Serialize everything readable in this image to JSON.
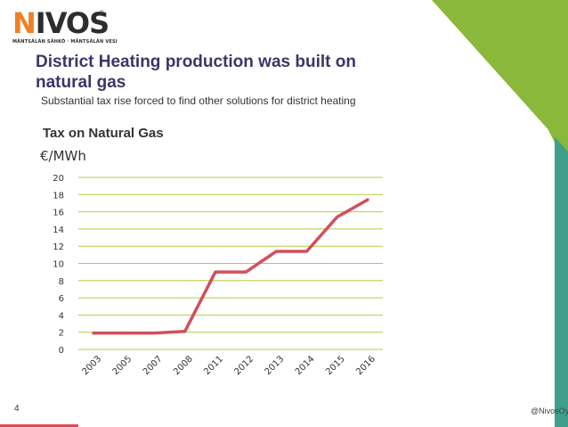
{
  "logo": {
    "brand": "NIVOS",
    "tagline": "MÄNTSÄLÄN SÄHKÖ · MÄNTSÄLÄN VESI",
    "registered": "®"
  },
  "slide": {
    "title": "District Heating production was built on natural gas",
    "subtitle": "Substantial tax rise forced to find other solutions for district heating",
    "page_number": "4",
    "handle": "@NivosOy"
  },
  "colors": {
    "title": "#3d3568",
    "line": "#d0505a",
    "grid": "#b7c944",
    "accent_green": "#8ab83a",
    "accent_teal": "#3f9f8b",
    "logo_orange": "#f07e26"
  },
  "chart_data": {
    "type": "line",
    "title": "Tax on Natural Gas",
    "ylabel": "€/MWh",
    "xlabel": "",
    "categories": [
      "2003",
      "2005",
      "2007",
      "2008",
      "2011",
      "2012",
      "2013",
      "2014",
      "2015",
      "2016"
    ],
    "series": [
      {
        "values": [
          1.9,
          1.9,
          1.9,
          2.1,
          9.0,
          9.0,
          11.4,
          11.4,
          15.4,
          17.4
        ]
      }
    ],
    "ylim": [
      0,
      20
    ],
    "yticks": [
      0,
      2,
      4,
      6,
      8,
      10,
      12,
      14,
      16,
      18,
      20
    ],
    "grid": true,
    "legend": "none"
  }
}
